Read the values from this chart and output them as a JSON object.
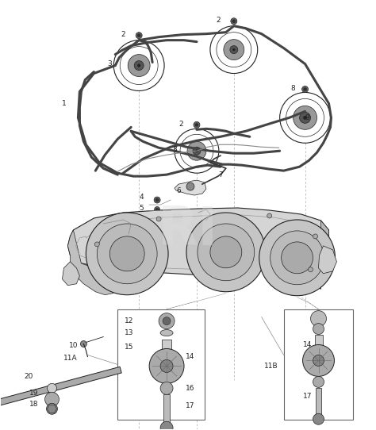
{
  "bg_color": "#ffffff",
  "fig_bg": "#ffffff",
  "watermark": "RI",
  "watermark_color": "#cccccc",
  "line_color": "#222222",
  "text_color": "#222222",
  "font_size": 6.5,
  "belt_color": "#444444",
  "belt_lw": 2.2,
  "deck_color": "#cccccc",
  "deck_edge": "#333333",
  "pulley_fill": "#888888",
  "pulley_edge": "#222222",
  "leader_color": "#888888",
  "leader_lw": 0.5,
  "box_edge": "#666666"
}
